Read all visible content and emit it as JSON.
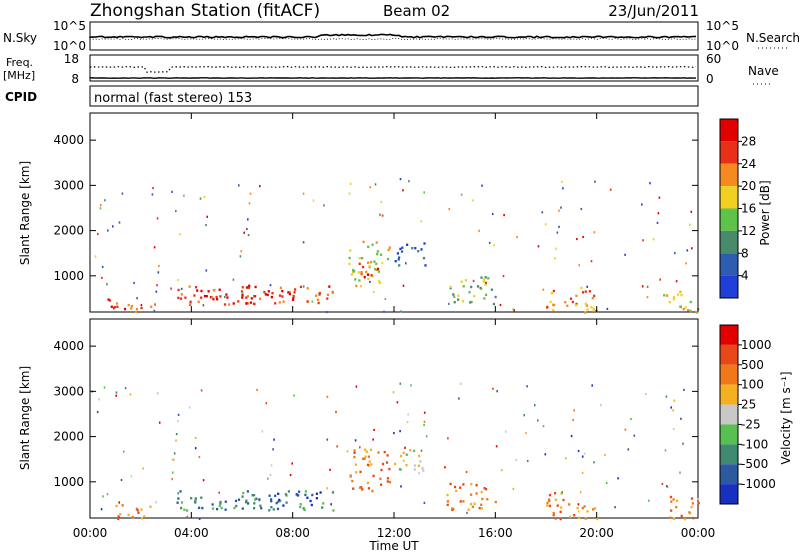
{
  "header": {
    "title": "Zhongshan Station (fitACF)",
    "beam": "Beam 02",
    "date": "23/Jun/2011"
  },
  "noise_panel": {
    "left_label": "N.Sky",
    "left_ticks": [
      "10^5",
      "10^0"
    ],
    "right_label": "N.Search",
    "right_ticks": [
      "10^5",
      "10^0"
    ]
  },
  "freq_panel": {
    "left_label_1": "Freq.",
    "left_label_2": "[MHz]",
    "left_ticks": [
      "18",
      "8"
    ],
    "right_label": "Nave",
    "right_ticks": [
      "60",
      "0"
    ]
  },
  "cpid": {
    "label": "CPID",
    "text": "normal (fast stereo) 153"
  },
  "chart_data": [
    {
      "type": "heatmap",
      "name": "Power",
      "ylabel": "Slant Range [km]",
      "yticks": [
        "1000",
        "2000",
        "3000",
        "4000"
      ],
      "ylim": [
        200,
        4600
      ],
      "xlim": [
        0,
        24
      ],
      "colorbar_label": "Power [dB]",
      "colorbar_ticks": [
        "4",
        "8",
        "12",
        "16",
        "20",
        "24",
        "28"
      ],
      "colors": [
        "#1f3fd8",
        "#2e5cb0",
        "#4a8a6c",
        "#5fc24a",
        "#f0d020",
        "#f58a20",
        "#e83018",
        "#e00000"
      ],
      "echo_regions": [
        {
          "t0": 0.6,
          "t1": 2.4,
          "r0": 200,
          "r1": 520,
          "level": 6
        },
        {
          "t0": 3.4,
          "t1": 9.6,
          "r0": 380,
          "r1": 820,
          "level": 6
        },
        {
          "t0": 4.0,
          "t1": 8.0,
          "r0": 500,
          "r1": 700,
          "level": 7
        },
        {
          "t0": 10.2,
          "t1": 11.8,
          "r0": 800,
          "r1": 1800,
          "level": 4
        },
        {
          "t0": 10.6,
          "t1": 11.4,
          "r0": 900,
          "r1": 1300,
          "level": 6
        },
        {
          "t0": 12.0,
          "t1": 13.2,
          "r0": 1250,
          "r1": 1800,
          "level": 1
        },
        {
          "t0": 14.0,
          "t1": 16.0,
          "r0": 400,
          "r1": 1000,
          "level": 3
        },
        {
          "t0": 18.0,
          "t1": 20.0,
          "r0": 200,
          "r1": 800,
          "level": 5
        },
        {
          "t0": 22.6,
          "t1": 24.0,
          "r0": 200,
          "r1": 700,
          "level": 4
        }
      ]
    },
    {
      "type": "heatmap",
      "name": "Velocity",
      "ylabel": "Slant Range [km]",
      "yticks": [
        "1000",
        "2000",
        "3000",
        "4000"
      ],
      "ylim": [
        200,
        4600
      ],
      "xlim": [
        0,
        24
      ],
      "colorbar_label": "Velocity [m s⁻¹]",
      "colorbar_ticks": [
        "1000",
        "500",
        "100",
        "25",
        "-25",
        "-100",
        "-500",
        "-1000"
      ],
      "colors": [
        "#1830c0",
        "#2c5aa0",
        "#3f8a70",
        "#58c050",
        "#c8c8c8",
        "#f5b020",
        "#f07818",
        "#e84818",
        "#e00000"
      ],
      "echo_regions": [
        {
          "t0": 0.6,
          "t1": 2.4,
          "r0": 200,
          "r1": 520,
          "level": 6
        },
        {
          "t0": 3.4,
          "t1": 9.6,
          "r0": 380,
          "r1": 820,
          "level": 2
        },
        {
          "t0": 7.0,
          "t1": 9.2,
          "r0": 500,
          "r1": 800,
          "level": 0
        },
        {
          "t0": 10.2,
          "t1": 11.8,
          "r0": 800,
          "r1": 1800,
          "level": 6
        },
        {
          "t0": 12.0,
          "t1": 13.2,
          "r0": 1250,
          "r1": 1800,
          "level": 4
        },
        {
          "t0": 14.0,
          "t1": 16.0,
          "r0": 400,
          "r1": 1000,
          "level": 6
        },
        {
          "t0": 18.0,
          "t1": 20.0,
          "r0": 200,
          "r1": 800,
          "level": 6
        },
        {
          "t0": 22.6,
          "t1": 24.0,
          "r0": 200,
          "r1": 700,
          "level": 6
        }
      ]
    }
  ],
  "x_axis": {
    "label": "Time UT",
    "ticks": [
      "00:00",
      "04:00",
      "08:00",
      "12:00",
      "16:00",
      "20:00",
      "00:00"
    ]
  }
}
